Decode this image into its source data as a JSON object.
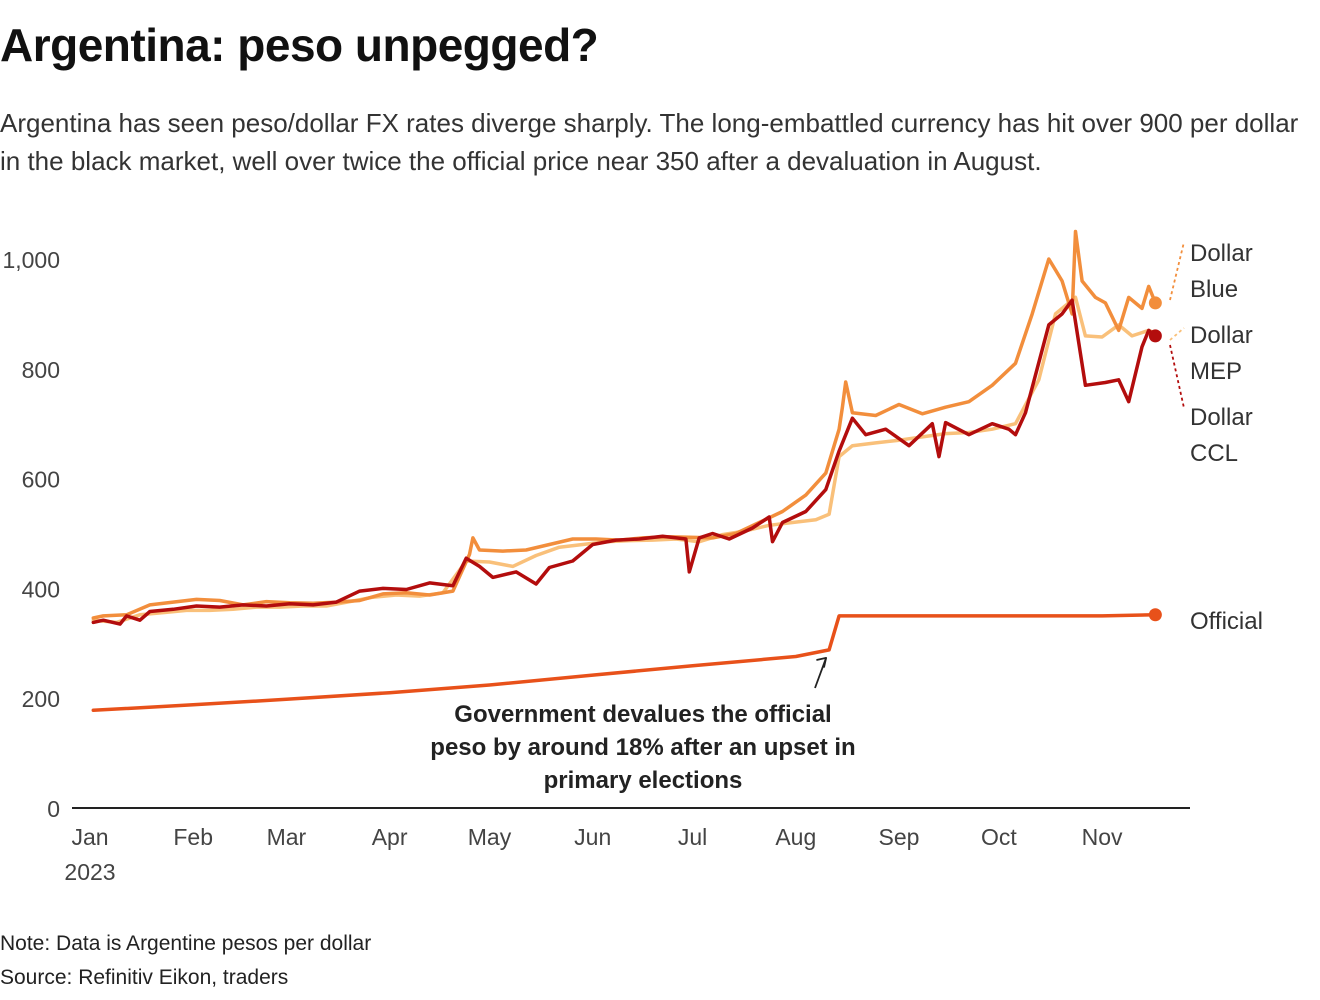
{
  "title": "Argentina: peso unpegged?",
  "subtitle": "Argentina has seen peso/dollar FX rates diverge sharply. The long-embattled currency has hit over 900 per dollar in the black market, well over twice the official price near 350 after a devaluation in August.",
  "note": "Note: Data is Argentine pesos per dollar",
  "source": "Source: Refinitiv Eikon, traders",
  "colors": {
    "official": "#e8511a",
    "blue": "#f28e3c",
    "mep": "#f9c07a",
    "ccl": "#b30d0d",
    "axis": "#222222",
    "text": "#333333"
  },
  "chart_data": {
    "type": "line",
    "title": "Argentina: peso unpegged?",
    "ylim": [
      0,
      1050
    ],
    "yticks": [
      0,
      200,
      400,
      600,
      800,
      1000
    ],
    "ytick_labels": [
      "0",
      "200",
      "400",
      "600",
      "800",
      "1,000"
    ],
    "x_domain": [
      "2023-01-01",
      "2023-11-22"
    ],
    "xticks": [
      {
        "date": "2023-01-01",
        "label": "Jan",
        "sublabel": "2023"
      },
      {
        "date": "2023-02-01",
        "label": "Feb"
      },
      {
        "date": "2023-03-01",
        "label": "Mar"
      },
      {
        "date": "2023-04-01",
        "label": "Apr"
      },
      {
        "date": "2023-05-01",
        "label": "May"
      },
      {
        "date": "2023-06-01",
        "label": "Jun"
      },
      {
        "date": "2023-07-01",
        "label": "Jul"
      },
      {
        "date": "2023-08-01",
        "label": "Aug"
      },
      {
        "date": "2023-09-01",
        "label": "Sep"
      },
      {
        "date": "2023-10-01",
        "label": "Oct"
      },
      {
        "date": "2023-11-01",
        "label": "Nov"
      }
    ],
    "series": [
      {
        "name": "Official",
        "label_lines": [
          "Official"
        ],
        "color_key": "official",
        "end_dot": true,
        "points": [
          [
            "2023-01-02",
            178
          ],
          [
            "2023-02-01",
            188
          ],
          [
            "2023-03-01",
            198
          ],
          [
            "2023-04-01",
            210
          ],
          [
            "2023-05-01",
            224
          ],
          [
            "2023-06-01",
            242
          ],
          [
            "2023-07-01",
            259
          ],
          [
            "2023-08-01",
            276
          ],
          [
            "2023-08-11",
            288
          ],
          [
            "2023-08-14",
            350
          ],
          [
            "2023-09-01",
            350
          ],
          [
            "2023-10-01",
            350
          ],
          [
            "2023-11-01",
            350
          ],
          [
            "2023-11-17",
            352
          ]
        ]
      },
      {
        "name": "Dollar Blue",
        "label_lines": [
          "Dollar",
          "Blue"
        ],
        "color_key": "blue",
        "end_dot": true,
        "points": [
          [
            "2023-01-02",
            346
          ],
          [
            "2023-01-05",
            350
          ],
          [
            "2023-01-12",
            352
          ],
          [
            "2023-01-19",
            370
          ],
          [
            "2023-01-26",
            375
          ],
          [
            "2023-02-02",
            380
          ],
          [
            "2023-02-09",
            378
          ],
          [
            "2023-02-16",
            370
          ],
          [
            "2023-02-23",
            376
          ],
          [
            "2023-03-02",
            374
          ],
          [
            "2023-03-09",
            373
          ],
          [
            "2023-03-16",
            375
          ],
          [
            "2023-03-23",
            378
          ],
          [
            "2023-03-30",
            390
          ],
          [
            "2023-04-06",
            392
          ],
          [
            "2023-04-13",
            388
          ],
          [
            "2023-04-20",
            395
          ],
          [
            "2023-04-25",
            462
          ],
          [
            "2023-04-26",
            492
          ],
          [
            "2023-04-28",
            470
          ],
          [
            "2023-05-05",
            468
          ],
          [
            "2023-05-12",
            470
          ],
          [
            "2023-05-19",
            480
          ],
          [
            "2023-05-26",
            490
          ],
          [
            "2023-06-02",
            490
          ],
          [
            "2023-06-09",
            488
          ],
          [
            "2023-06-16",
            492
          ],
          [
            "2023-06-23",
            494
          ],
          [
            "2023-06-30",
            493
          ],
          [
            "2023-07-07",
            492
          ],
          [
            "2023-07-14",
            500
          ],
          [
            "2023-07-21",
            520
          ],
          [
            "2023-07-28",
            540
          ],
          [
            "2023-08-04",
            570
          ],
          [
            "2023-08-10",
            610
          ],
          [
            "2023-08-14",
            690
          ],
          [
            "2023-08-15",
            730
          ],
          [
            "2023-08-16",
            776
          ],
          [
            "2023-08-18",
            720
          ],
          [
            "2023-08-25",
            715
          ],
          [
            "2023-09-01",
            735
          ],
          [
            "2023-09-08",
            718
          ],
          [
            "2023-09-15",
            730
          ],
          [
            "2023-09-22",
            740
          ],
          [
            "2023-09-29",
            770
          ],
          [
            "2023-10-06",
            810
          ],
          [
            "2023-10-11",
            900
          ],
          [
            "2023-10-16",
            1000
          ],
          [
            "2023-10-18",
            980
          ],
          [
            "2023-10-20",
            960
          ],
          [
            "2023-10-23",
            900
          ],
          [
            "2023-10-24",
            1050
          ],
          [
            "2023-10-26",
            960
          ],
          [
            "2023-10-30",
            930
          ],
          [
            "2023-11-02",
            920
          ],
          [
            "2023-11-06",
            870
          ],
          [
            "2023-11-09",
            930
          ],
          [
            "2023-11-13",
            910
          ],
          [
            "2023-11-15",
            950
          ],
          [
            "2023-11-17",
            920
          ]
        ]
      },
      {
        "name": "Dollar MEP",
        "label_lines": [
          "Dollar",
          "MEP"
        ],
        "color_key": "mep",
        "end_dot": false,
        "points": [
          [
            "2023-01-02",
            342
          ],
          [
            "2023-01-09",
            338
          ],
          [
            "2023-01-16",
            352
          ],
          [
            "2023-01-23",
            356
          ],
          [
            "2023-01-30",
            360
          ],
          [
            "2023-02-06",
            360
          ],
          [
            "2023-02-13",
            362
          ],
          [
            "2023-02-20",
            366
          ],
          [
            "2023-02-27",
            366
          ],
          [
            "2023-03-06",
            368
          ],
          [
            "2023-03-13",
            368
          ],
          [
            "2023-03-20",
            376
          ],
          [
            "2023-03-27",
            384
          ],
          [
            "2023-04-03",
            388
          ],
          [
            "2023-04-10",
            386
          ],
          [
            "2023-04-17",
            392
          ],
          [
            "2023-04-24",
            450
          ],
          [
            "2023-05-01",
            448
          ],
          [
            "2023-05-08",
            440
          ],
          [
            "2023-05-15",
            460
          ],
          [
            "2023-05-22",
            475
          ],
          [
            "2023-05-29",
            480
          ],
          [
            "2023-06-05",
            485
          ],
          [
            "2023-06-12",
            487
          ],
          [
            "2023-06-19",
            488
          ],
          [
            "2023-06-26",
            490
          ],
          [
            "2023-07-03",
            485
          ],
          [
            "2023-07-10",
            498
          ],
          [
            "2023-07-17",
            505
          ],
          [
            "2023-07-24",
            515
          ],
          [
            "2023-07-31",
            520
          ],
          [
            "2023-08-07",
            525
          ],
          [
            "2023-08-11",
            535
          ],
          [
            "2023-08-14",
            640
          ],
          [
            "2023-08-18",
            660
          ],
          [
            "2023-08-25",
            665
          ],
          [
            "2023-09-01",
            670
          ],
          [
            "2023-09-08",
            676
          ],
          [
            "2023-09-15",
            682
          ],
          [
            "2023-09-22",
            684
          ],
          [
            "2023-09-29",
            690
          ],
          [
            "2023-10-06",
            700
          ],
          [
            "2023-10-13",
            780
          ],
          [
            "2023-10-18",
            900
          ],
          [
            "2023-10-24",
            930
          ],
          [
            "2023-10-27",
            860
          ],
          [
            "2023-11-01",
            858
          ],
          [
            "2023-11-06",
            880
          ],
          [
            "2023-11-10",
            860
          ],
          [
            "2023-11-15",
            870
          ],
          [
            "2023-11-17",
            865
          ]
        ]
      },
      {
        "name": "Dollar CCL",
        "label_lines": [
          "Dollar",
          "CCL"
        ],
        "color_key": "ccl",
        "end_dot": true,
        "points": [
          [
            "2023-01-02",
            338
          ],
          [
            "2023-01-05",
            342
          ],
          [
            "2023-01-10",
            335
          ],
          [
            "2023-01-12",
            350
          ],
          [
            "2023-01-16",
            342
          ],
          [
            "2023-01-19",
            358
          ],
          [
            "2023-01-26",
            362
          ],
          [
            "2023-02-02",
            368
          ],
          [
            "2023-02-09",
            366
          ],
          [
            "2023-02-16",
            370
          ],
          [
            "2023-02-23",
            368
          ],
          [
            "2023-03-02",
            372
          ],
          [
            "2023-03-09",
            370
          ],
          [
            "2023-03-16",
            375
          ],
          [
            "2023-03-23",
            395
          ],
          [
            "2023-03-30",
            400
          ],
          [
            "2023-04-06",
            398
          ],
          [
            "2023-04-13",
            410
          ],
          [
            "2023-04-20",
            405
          ],
          [
            "2023-04-24",
            455
          ],
          [
            "2023-04-28",
            440
          ],
          [
            "2023-05-02",
            420
          ],
          [
            "2023-05-09",
            430
          ],
          [
            "2023-05-15",
            408
          ],
          [
            "2023-05-19",
            438
          ],
          [
            "2023-05-26",
            450
          ],
          [
            "2023-06-01",
            480
          ],
          [
            "2023-06-08",
            488
          ],
          [
            "2023-06-15",
            490
          ],
          [
            "2023-06-22",
            495
          ],
          [
            "2023-06-29",
            490
          ],
          [
            "2023-06-30",
            430
          ],
          [
            "2023-07-03",
            492
          ],
          [
            "2023-07-07",
            500
          ],
          [
            "2023-07-12",
            490
          ],
          [
            "2023-07-19",
            510
          ],
          [
            "2023-07-24",
            530
          ],
          [
            "2023-07-25",
            485
          ],
          [
            "2023-07-28",
            520
          ],
          [
            "2023-08-04",
            540
          ],
          [
            "2023-08-10",
            580
          ],
          [
            "2023-08-14",
            650
          ],
          [
            "2023-08-18",
            710
          ],
          [
            "2023-08-22",
            680
          ],
          [
            "2023-08-28",
            690
          ],
          [
            "2023-09-04",
            660
          ],
          [
            "2023-09-11",
            700
          ],
          [
            "2023-09-13",
            640
          ],
          [
            "2023-09-15",
            702
          ],
          [
            "2023-09-22",
            680
          ],
          [
            "2023-09-29",
            700
          ],
          [
            "2023-10-04",
            690
          ],
          [
            "2023-10-06",
            680
          ],
          [
            "2023-10-09",
            720
          ],
          [
            "2023-10-16",
            880
          ],
          [
            "2023-10-20",
            900
          ],
          [
            "2023-10-23",
            925
          ],
          [
            "2023-10-27",
            770
          ],
          [
            "2023-11-02",
            775
          ],
          [
            "2023-11-06",
            780
          ],
          [
            "2023-11-09",
            740
          ],
          [
            "2023-11-13",
            840
          ],
          [
            "2023-11-15",
            870
          ],
          [
            "2023-11-17",
            860
          ]
        ]
      }
    ],
    "annotation": {
      "lines": [
        "Government devalues the official",
        "peso by around 18% after an upset in",
        "primary elections"
      ],
      "target_date": "2023-08-11",
      "target_value": 288
    }
  }
}
